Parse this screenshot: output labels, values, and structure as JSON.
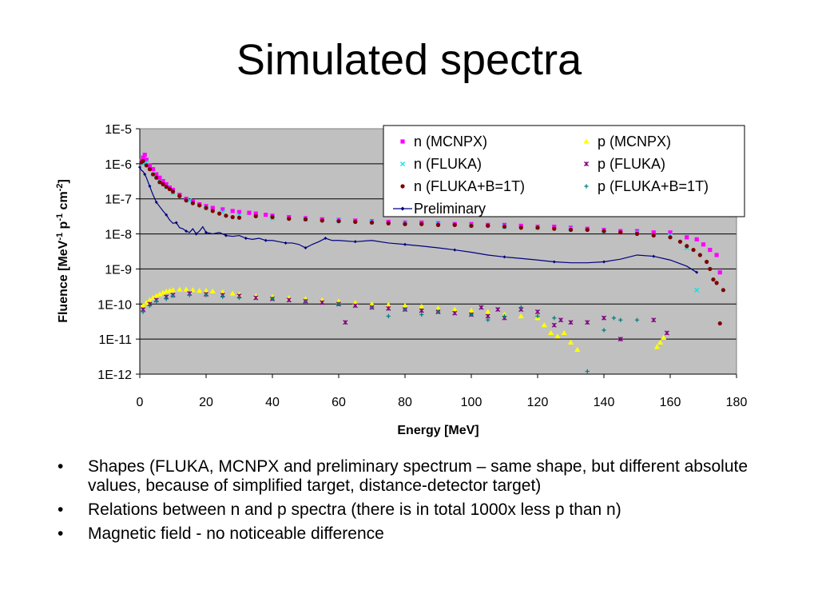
{
  "slide": {
    "title": "Simulated spectra",
    "bullets": [
      "Shapes (FLUKA, MCNPX and preliminary spectrum – same shape, but different absolute values, because of simplified target, distance-detector target)",
      "Relations between n and p spectra (there is in total 1000x less p than n)",
      "Magnetic field - no noticeable difference"
    ]
  },
  "chart_data": {
    "type": "scatter",
    "xlabel": "Energy [MeV]",
    "ylabel": "Fluence [MeV-1 p-1 cm-2]",
    "xlim": [
      0,
      180
    ],
    "ylim": [
      1e-12,
      1e-05
    ],
    "yscale": "log",
    "x_ticks": [
      "0",
      "20",
      "40",
      "60",
      "80",
      "100",
      "120",
      "140",
      "160",
      "180"
    ],
    "y_ticks": [
      "1E-12",
      "1E-11",
      "1E-10",
      "1E-9",
      "1E-8",
      "1E-7",
      "1E-6",
      "1E-5"
    ],
    "grid": "horizontal",
    "plot_background": "#c0c0c0",
    "legend_position": "top-right",
    "series": [
      {
        "name": "n (MCNPX)",
        "marker": "square",
        "color": "#ff00ff",
        "x": [
          0.5,
          1,
          1.5,
          2,
          3,
          4,
          5,
          6,
          7,
          8,
          9,
          10,
          12,
          14,
          16,
          18,
          20,
          22,
          25,
          28,
          30,
          33,
          35,
          38,
          40,
          45,
          50,
          55,
          60,
          65,
          70,
          75,
          80,
          85,
          90,
          95,
          100,
          105,
          110,
          115,
          120,
          125,
          130,
          135,
          140,
          145,
          150,
          155,
          160,
          165,
          168,
          170,
          172,
          174,
          175
        ],
        "y": [
          1.2e-06,
          1.5e-06,
          1.8e-06,
          1.3e-06,
          9e-07,
          7e-07,
          5e-07,
          4e-07,
          3.2e-07,
          2.6e-07,
          2.1e-07,
          1.8e-07,
          1.3e-07,
          1e-07,
          8.5e-08,
          7e-08,
          6.2e-08,
          5.5e-08,
          5e-08,
          4.5e-08,
          4.2e-08,
          4e-08,
          3.8e-08,
          3.5e-08,
          3.3e-08,
          3e-08,
          2.8e-08,
          2.6e-08,
          2.5e-08,
          2.4e-08,
          2.3e-08,
          2.2e-08,
          2.1e-08,
          2.1e-08,
          2e-08,
          1.9e-08,
          1.9e-08,
          1.8e-08,
          1.8e-08,
          1.7e-08,
          1.6e-08,
          1.6e-08,
          1.5e-08,
          1.4e-08,
          1.3e-08,
          1.2e-08,
          1.2e-08,
          1.1e-08,
          1.1e-08,
          8e-09,
          7e-09,
          5e-09,
          3.5e-09,
          2.5e-09,
          8e-10
        ]
      },
      {
        "name": "n (FLUKA)",
        "marker": "x",
        "color": "#00e5e5",
        "x": [
          1,
          2,
          4,
          6,
          8,
          10,
          15,
          20,
          25,
          30,
          40,
          50,
          60,
          70,
          80,
          90,
          100,
          110,
          120,
          130,
          140,
          150,
          160,
          165,
          168
        ],
        "y": [
          1e-06,
          1.1e-06,
          5e-07,
          3e-07,
          2.2e-07,
          1.5e-07,
          9e-08,
          5.5e-08,
          4.2e-08,
          3.4e-08,
          2.8e-08,
          2.6e-08,
          2.4e-08,
          2.2e-08,
          2e-08,
          1.9e-08,
          1.7e-08,
          1.6e-08,
          1.5e-08,
          1.4e-08,
          1.2e-08,
          1.1e-08,
          9e-09,
          4e-09,
          2.5e-10
        ]
      },
      {
        "name": "n (FLUKA+B=1T)",
        "marker": "circle",
        "color": "#800000",
        "x": [
          0.5,
          1,
          2,
          3,
          4,
          5,
          6,
          7,
          8,
          9,
          10,
          12,
          14,
          16,
          18,
          20,
          22,
          24,
          26,
          28,
          30,
          35,
          40,
          45,
          50,
          55,
          60,
          65,
          70,
          75,
          80,
          85,
          90,
          95,
          100,
          105,
          110,
          115,
          120,
          125,
          130,
          135,
          140,
          145,
          150,
          155,
          160,
          163,
          165,
          167,
          169,
          171,
          172,
          173,
          174,
          175,
          176
        ],
        "y": [
          1.1e-06,
          1.2e-06,
          9e-07,
          7e-07,
          5e-07,
          4e-07,
          3e-07,
          2.6e-07,
          2.2e-07,
          1.9e-07,
          1.6e-07,
          1.2e-07,
          9e-08,
          7.5e-08,
          6.5e-08,
          5.5e-08,
          4.5e-08,
          3.8e-08,
          3.3e-08,
          3e-08,
          2.9e-08,
          3.2e-08,
          3e-08,
          2.7e-08,
          2.6e-08,
          2.4e-08,
          2.3e-08,
          2.2e-08,
          2.1e-08,
          2e-08,
          1.9e-08,
          1.9e-08,
          1.8e-08,
          1.8e-08,
          1.7e-08,
          1.7e-08,
          1.6e-08,
          1.5e-08,
          1.5e-08,
          1.4e-08,
          1.3e-08,
          1.3e-08,
          1.2e-08,
          1.1e-08,
          1e-08,
          9e-09,
          8e-09,
          6e-09,
          4.5e-09,
          3.5e-09,
          2.5e-09,
          1.6e-09,
          1e-09,
          5e-10,
          4e-10,
          2.8e-11,
          2.5e-10
        ]
      },
      {
        "name": "p (MCNPX)",
        "marker": "triangle",
        "color": "#ffff00",
        "x": [
          1,
          2,
          3,
          4,
          5,
          6,
          7,
          8,
          9,
          10,
          12,
          14,
          16,
          18,
          20,
          22,
          25,
          28,
          30,
          35,
          40,
          45,
          50,
          55,
          60,
          65,
          70,
          75,
          80,
          85,
          90,
          95,
          100,
          105,
          110,
          115,
          120,
          122,
          124,
          126,
          128,
          130,
          132,
          156,
          157,
          158
        ],
        "y": [
          9e-11,
          1.1e-10,
          1.3e-10,
          1.5e-10,
          1.7e-10,
          1.9e-10,
          2.1e-10,
          2.3e-10,
          2.4e-10,
          2.5e-10,
          2.6e-10,
          2.6e-10,
          2.5e-10,
          2.4e-10,
          2.4e-10,
          2.3e-10,
          2.2e-10,
          2e-10,
          1.9e-10,
          1.7e-10,
          1.6e-10,
          1.5e-10,
          1.4e-10,
          1.3e-10,
          1.2e-10,
          1.1e-10,
          1e-10,
          9.5e-11,
          9e-11,
          8.5e-11,
          7.5e-11,
          7e-11,
          6.5e-11,
          6e-11,
          5e-11,
          4.5e-11,
          4e-11,
          2.5e-11,
          1.5e-11,
          1.2e-11,
          1.5e-11,
          8e-12,
          5e-12,
          6e-12,
          8e-12,
          1.1e-11
        ]
      },
      {
        "name": "p (FLUKA)",
        "marker": "star",
        "color": "#800080",
        "x": [
          1,
          3,
          5,
          8,
          10,
          15,
          20,
          25,
          30,
          35,
          40,
          45,
          50,
          55,
          60,
          62,
          65,
          70,
          75,
          80,
          85,
          90,
          95,
          100,
          103,
          105,
          108,
          110,
          115,
          120,
          125,
          127,
          130,
          135,
          140,
          145,
          155,
          159
        ],
        "y": [
          7e-11,
          1e-10,
          1.3e-10,
          1.6e-10,
          1.8e-10,
          2e-10,
          1.9e-10,
          1.8e-10,
          1.7e-10,
          1.5e-10,
          1.4e-10,
          1.3e-10,
          1.2e-10,
          1.1e-10,
          1e-10,
          3e-11,
          9e-11,
          8e-11,
          7.5e-11,
          7e-11,
          6.5e-11,
          6e-11,
          5.5e-11,
          5e-11,
          8e-11,
          4.5e-11,
          7e-11,
          4e-11,
          7e-11,
          6e-11,
          2.5e-11,
          3.5e-11,
          3e-11,
          3e-11,
          4e-11,
          1e-11,
          3.5e-11,
          1.5e-11
        ]
      },
      {
        "name": "p (FLUKA+B=1T)",
        "marker": "plus",
        "color": "#008080",
        "x": [
          1,
          3,
          5,
          8,
          10,
          15,
          20,
          25,
          30,
          40,
          50,
          60,
          70,
          75,
          80,
          85,
          90,
          100,
          105,
          110,
          115,
          120,
          125,
          135,
          140,
          143,
          145,
          150
        ],
        "y": [
          6e-11,
          9e-11,
          1.2e-10,
          1.4e-10,
          1.7e-10,
          1.8e-10,
          1.8e-10,
          1.6e-10,
          1.5e-10,
          1.4e-10,
          1.2e-10,
          1e-10,
          8e-11,
          4.5e-11,
          7e-11,
          5e-11,
          6e-11,
          5e-11,
          3.5e-11,
          4.5e-11,
          8e-11,
          4.5e-11,
          4e-11,
          1.2e-12,
          1.8e-11,
          4e-11,
          3.5e-11,
          3.5e-11
        ]
      },
      {
        "name": "Preliminary",
        "marker": "line-diamond",
        "color": "#000080",
        "x": [
          0,
          0.5,
          1,
          1.5,
          2,
          2.5,
          3,
          3.5,
          4,
          5,
          6,
          7,
          8,
          9,
          10,
          11,
          12,
          13,
          14,
          15,
          16,
          17,
          18,
          19,
          20,
          22,
          24,
          26,
          28,
          30,
          32,
          34,
          36,
          38,
          40,
          42,
          44,
          46,
          48,
          50,
          52,
          54,
          56,
          58,
          60,
          65,
          70,
          75,
          80,
          85,
          90,
          95,
          100,
          105,
          110,
          115,
          120,
          125,
          130,
          135,
          140,
          145,
          150,
          155,
          160,
          165,
          168
        ],
        "y": [
          8e-07,
          6.5e-07,
          6e-07,
          5e-07,
          4e-07,
          3e-07,
          2.3e-07,
          1.7e-07,
          1.3e-07,
          8e-08,
          6e-08,
          4.5e-08,
          3.5e-08,
          2.5e-08,
          2e-08,
          2.1e-08,
          1.5e-08,
          1.4e-08,
          1.2e-08,
          1.1e-08,
          1.4e-08,
          1e-08,
          1.2e-08,
          1.6e-08,
          1.1e-08,
          1e-08,
          1.1e-08,
          9e-09,
          8.5e-09,
          9e-09,
          7.5e-09,
          7e-09,
          7.5e-09,
          6.5e-09,
          6.5e-09,
          6e-09,
          5.5e-09,
          5.5e-09,
          5e-09,
          4e-09,
          5e-09,
          6e-09,
          7.5e-09,
          6.5e-09,
          6.5e-09,
          6e-09,
          6.5e-09,
          5.5e-09,
          5e-09,
          4.5e-09,
          4e-09,
          3.5e-09,
          3e-09,
          2.5e-09,
          2.2e-09,
          2e-09,
          1.8e-09,
          1.6e-09,
          1.5e-09,
          1.5e-09,
          1.6e-09,
          1.9e-09,
          2.5e-09,
          2.3e-09,
          1.8e-09,
          1.2e-09,
          8e-10
        ]
      }
    ]
  }
}
